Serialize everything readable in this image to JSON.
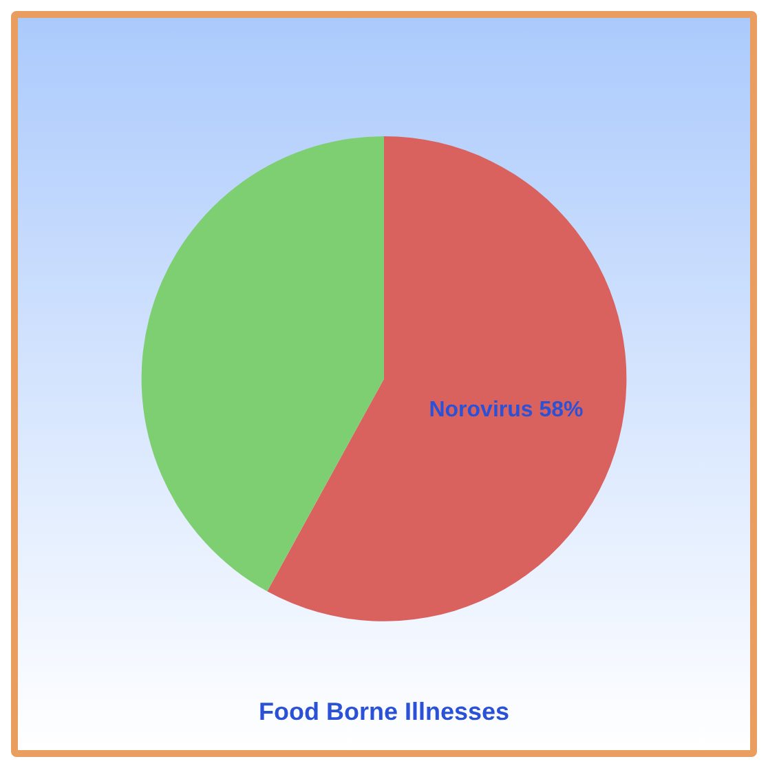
{
  "chart_data": {
    "type": "pie",
    "title": "Food Borne Illnesses",
    "categories": [
      "Norovirus",
      null
    ],
    "values": [
      58,
      42
    ],
    "colors": [
      "#d9625f",
      "#7dcf72"
    ],
    "value_labels": [
      "58%",
      null
    ],
    "legend": false
  }
}
